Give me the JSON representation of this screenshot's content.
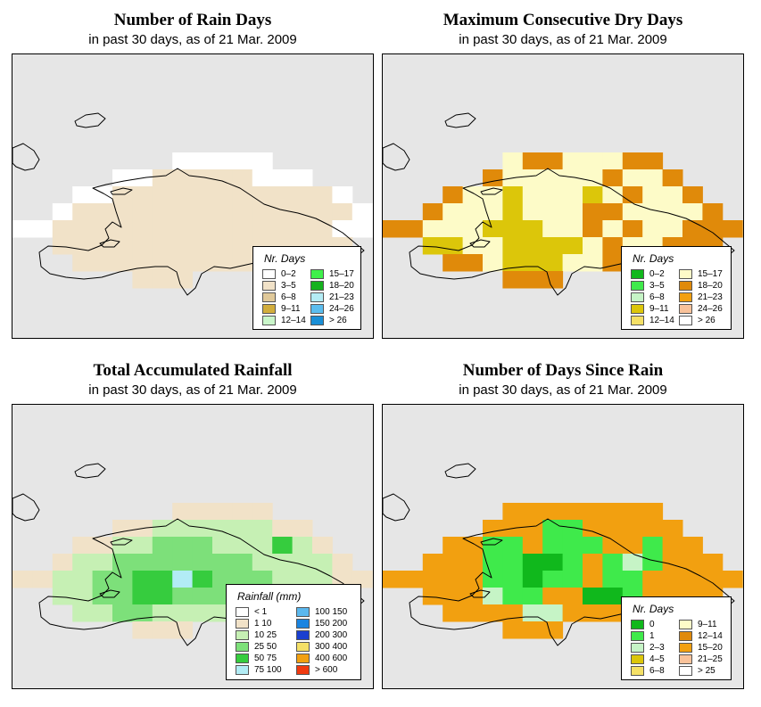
{
  "colors": {
    "map_bg": "#e6e6e6",
    "coast": "#000000"
  },
  "panels": [
    {
      "id": "rain-days",
      "title": "Number of Rain Days",
      "subtitle": "in past 30 days, as of  21 Mar. 2009",
      "legend": {
        "title": "Nr. Days",
        "col1": [
          {
            "label": "0–2",
            "color": "#ffffff"
          },
          {
            "label": "3–5",
            "color": "#f1e2c8"
          },
          {
            "label": "6–8",
            "color": "#e0c99a"
          },
          {
            "label": "9–11",
            "color": "#d2ad3c"
          },
          {
            "label": "12–14",
            "color": "#c9f5c9"
          }
        ],
        "col2": [
          {
            "label": "15–17",
            "color": "#3ff04b"
          },
          {
            "label": "18–20",
            "color": "#16b21e"
          },
          {
            "label": "21–23",
            "color": "#b4ecf5"
          },
          {
            "label": "24–26",
            "color": "#5bbdee"
          },
          {
            "label": "> 26",
            "color": "#1a8fd6"
          }
        ]
      },
      "grid": [
        "..................",
        "..................",
        "..................",
        "..................",
        "........WWWWW.....",
        ".....WWSSSSSWWW...",
        "...WWSSSSSSSSSSSW.",
        "..WSSSSSSSSSSSSSSW",
        "WWSSSSSSSSSSSSSSWW",
        "..SSSSSSSSSSSSSSS.",
        "...SSSSSSSSSSSS...",
        "......SSS........."
      ]
    },
    {
      "id": "dry-days",
      "title": "Maximum Consecutive Dry Days",
      "subtitle": "in past 30 days, as of  21 Mar. 2009",
      "legend": {
        "title": "Nr. Days",
        "col1": [
          {
            "label": "0–2",
            "color": "#10b81c"
          },
          {
            "label": "3–5",
            "color": "#3fea4b"
          },
          {
            "label": "6–8",
            "color": "#c6f4c6"
          },
          {
            "label": "9–11",
            "color": "#dcc60a"
          },
          {
            "label": "12–14",
            "color": "#f4e066"
          }
        ],
        "col2": [
          {
            "label": "15–17",
            "color": "#fdfbc8"
          },
          {
            "label": "18–20",
            "color": "#e08a0a"
          },
          {
            "label": "21–23",
            "color": "#f2a010"
          },
          {
            "label": "24–26",
            "color": "#f9c29a"
          },
          {
            "label": "> 26",
            "color": "#ffffff"
          }
        ]
      },
      "grid": [
        "..................",
        "..................",
        "..................",
        "..................",
        "......LOOLLLOO....",
        ".....OLLLLLOLLO...",
        "...OLLYLLLYLOLLO..",
        "..OLLLYLLLOOLLLLO.",
        "OOLLLYYYLLOLOLLOOO",
        "..YYLLYYYYLOLLOOO.",
        "...OOLYYYLLOOOO...",
        "......OOO........."
      ]
    },
    {
      "id": "rainfall",
      "title": "Total Accumulated Rainfall",
      "subtitle": "in past 30 days, as of  21 Mar. 2009",
      "legend": {
        "title": "Rainfall (mm)",
        "col1": [
          {
            "label": "< 1",
            "color": "#ffffff"
          },
          {
            "label": "1   10",
            "color": "#f1e2c8"
          },
          {
            "label": "10   25",
            "color": "#c6f0b4"
          },
          {
            "label": "25   50",
            "color": "#7de07a"
          },
          {
            "label": "50   75",
            "color": "#36cc3e"
          },
          {
            "label": "75   100",
            "color": "#b2ecf5"
          }
        ],
        "col2": [
          {
            "label": "100  150",
            "color": "#5bb8ee"
          },
          {
            "label": "150  200",
            "color": "#1a84e0"
          },
          {
            "label": "200  300",
            "color": "#1a3fd0"
          },
          {
            "label": "300  400",
            "color": "#f4e066"
          },
          {
            "label": "400  600",
            "color": "#f2a010"
          },
          {
            "label": "> 600",
            "color": "#f03a10"
          }
        ]
      },
      "grid": [
        "..................",
        "..................",
        "..................",
        "..................",
        "........TTTTT.....",
        ".....TTLLLLLLTT...",
        "...TTLLMMMLLLGLT..",
        "..TLLMMMMMMMLLLLT.",
        "TTLLMMDDCDMMMLLLTT",
        "..LLMMDDMMMLLLLLL.",
        "...LLMMLLLLLLT....",
        "......TTT........."
      ]
    },
    {
      "id": "days-since-rain",
      "title": "Number of Days Since Rain",
      "subtitle": "in past 30 days, as of  21 Mar. 2009",
      "legend": {
        "title": "Nr. Days",
        "col1": [
          {
            "label": "0",
            "color": "#10b81c"
          },
          {
            "label": "1",
            "color": "#3fea4b"
          },
          {
            "label": "2–3",
            "color": "#c6f4c6"
          },
          {
            "label": "4–5",
            "color": "#dcc60a"
          },
          {
            "label": "6–8",
            "color": "#f4e066"
          }
        ],
        "col2": [
          {
            "label": "9–11",
            "color": "#fdfbc8"
          },
          {
            "label": "12–14",
            "color": "#e08a0a"
          },
          {
            "label": "15–20",
            "color": "#f2a010"
          },
          {
            "label": "21–25",
            "color": "#f9c29a"
          },
          {
            "label": "> 25",
            "color": "#ffffff"
          }
        ]
      },
      "grid": [
        "..................",
        "..................",
        "..................",
        "..................",
        "......OOOOOOOO....",
        ".....OOOGGOOOOO...",
        "...OOGGOGGGOOGOO..",
        "..OOOGGDDGOGLGOOO.",
        "OOOOOGGDGGOGGOOOOO",
        "..OOOLGGOODDGOOOO.",
        "...OOOOLLOOOOO....",
        "......OOO........."
      ]
    }
  ]
}
